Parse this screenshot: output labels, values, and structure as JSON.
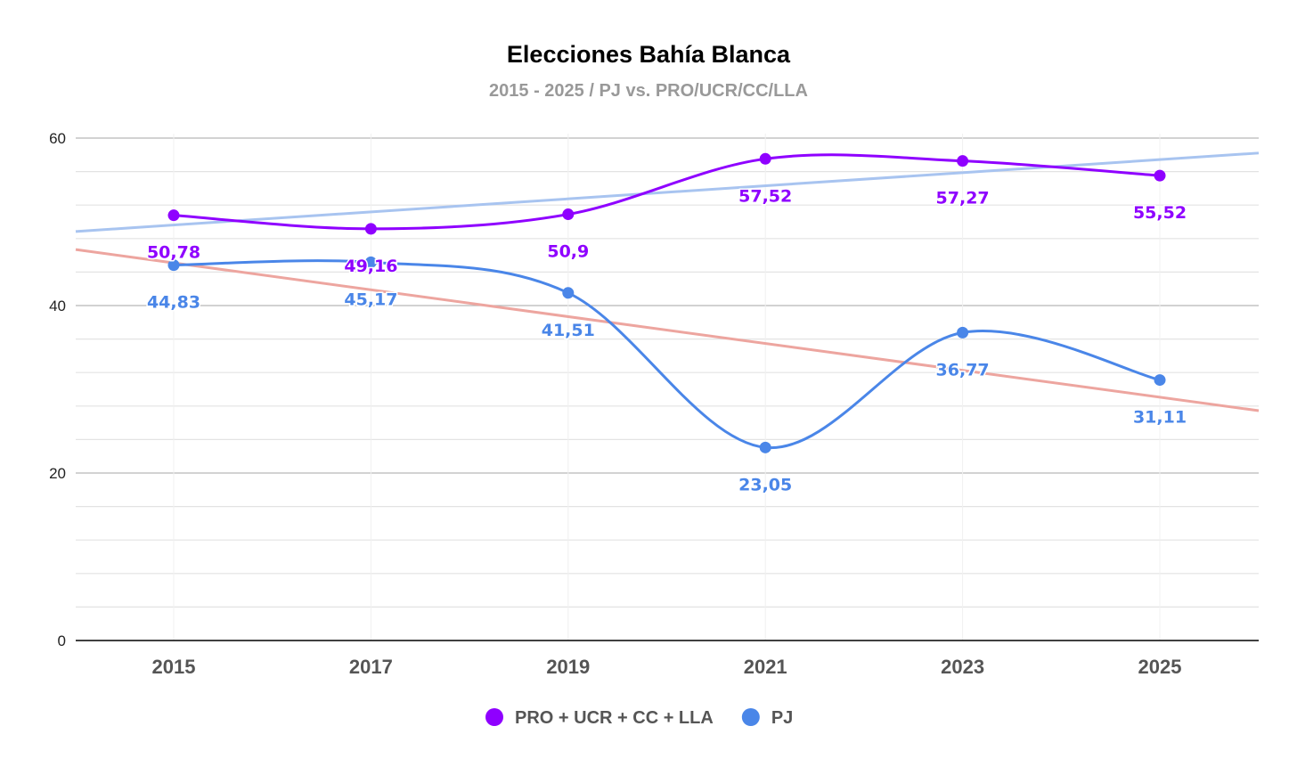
{
  "chart_data": {
    "type": "line",
    "title": "Elecciones Bahía Blanca",
    "subtitle": "2015 - 2025 / PJ vs. PRO/UCR/CC/LLA",
    "xlabel": "",
    "ylabel": "",
    "categories": [
      "2015",
      "2017",
      "2019",
      "2021",
      "2023",
      "2025"
    ],
    "ylim": [
      0,
      60
    ],
    "yticks": [
      "0",
      "20",
      "40",
      "60"
    ],
    "grid": true,
    "legend_position": "bottom",
    "series": [
      {
        "name": "PRO + UCR + CC + LLA",
        "color": "#8f00ff",
        "values": [
          50.78,
          49.16,
          50.9,
          57.52,
          57.27,
          55.52
        ],
        "labels": [
          "50,78",
          "49,16",
          "50,9",
          "57,52",
          "57,27",
          "55,52"
        ],
        "smooth": true,
        "trendline": {
          "type": "linear",
          "color": "#a8c4f0"
        }
      },
      {
        "name": "PJ",
        "color": "#4a86e8",
        "values": [
          44.83,
          45.17,
          41.51,
          23.05,
          36.77,
          31.11
        ],
        "labels": [
          "44,83",
          "45,17",
          "41,51",
          "23,05",
          "36,77",
          "31,11"
        ],
        "smooth": true,
        "trendline": {
          "type": "linear",
          "color": "#eda59f"
        }
      }
    ]
  }
}
